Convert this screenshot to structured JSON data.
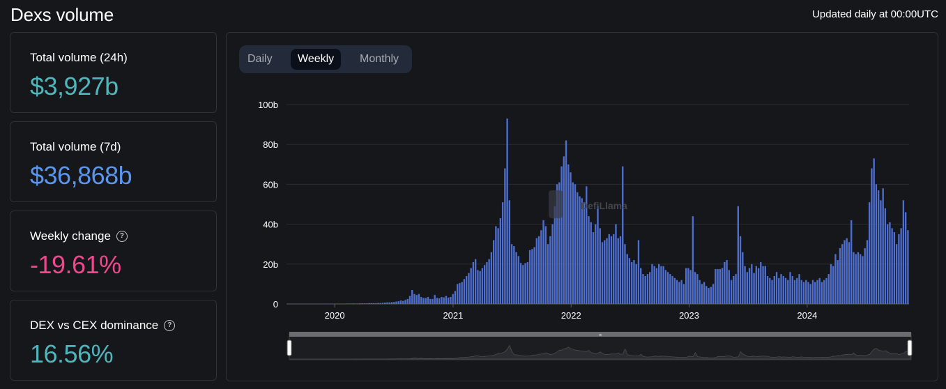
{
  "header": {
    "title": "Dexs volume",
    "updated": "Updated daily at 00:00UTC"
  },
  "cards": [
    {
      "label": "Total volume (24h)",
      "value": "$3,927b",
      "color": "#4fb6bd",
      "help": false
    },
    {
      "label": "Total volume (7d)",
      "value": "$36,868b",
      "color": "#5a95ee",
      "help": false
    },
    {
      "label": "Weekly change",
      "value": "-19.61%",
      "color": "#f0488e",
      "help": true
    },
    {
      "label": "DEX vs CEX dominance",
      "value": "16.56%",
      "color": "#4fb6bd",
      "help": true
    }
  ],
  "tabs": [
    {
      "label": "Daily",
      "active": false
    },
    {
      "label": "Weekly",
      "active": true
    },
    {
      "label": "Monthly",
      "active": false
    }
  ],
  "watermark": "DefiLlama",
  "colors": {
    "bar": "#4f6fd0",
    "grid": "#2a2c31",
    "axis_text": "#ffffff"
  },
  "chart_data": {
    "type": "bar",
    "xlabel": "",
    "ylabel": "",
    "x_start": "2019-08-05",
    "x_interval": "weekly",
    "xticks": [
      "2020",
      "2021",
      "2022",
      "2023",
      "2024"
    ],
    "yticks": [
      "0",
      "20b",
      "40b",
      "60b",
      "80b",
      "100b"
    ],
    "ylim": [
      0,
      100
    ],
    "grid": true,
    "values": [
      0.05,
      0.05,
      0.05,
      0.05,
      0.05,
      0.05,
      0.05,
      0.05,
      0.05,
      0.05,
      0.05,
      0.05,
      0.1,
      0.1,
      0.1,
      0.1,
      0.1,
      0.1,
      0.1,
      0.1,
      0.1,
      0.1,
      0.1,
      0.15,
      0.15,
      0.15,
      0.2,
      0.2,
      0.2,
      0.25,
      0.2,
      0.2,
      0.3,
      0.3,
      0.3,
      0.3,
      0.4,
      0.4,
      0.4,
      0.4,
      0.5,
      0.5,
      0.6,
      0.7,
      0.8,
      0.8,
      0.9,
      1.0,
      1.2,
      1.4,
      1.8,
      1.5,
      2,
      2.5,
      4,
      7,
      5,
      4.5,
      5,
      3.5,
      3,
      3,
      3.5,
      2.5,
      2.5,
      4.5,
      3,
      2.8,
      3.5,
      3.3,
      4,
      3.2,
      3.5,
      5,
      6.5,
      10,
      10.5,
      11,
      12.5,
      14,
      15.5,
      18,
      21,
      22.5,
      17,
      16.5,
      18,
      19.5,
      21,
      22.5,
      26,
      32,
      39,
      38,
      43,
      51,
      68,
      93,
      52,
      30,
      29,
      26,
      24,
      20.5,
      19.5,
      20.5,
      21,
      27,
      27.5,
      28.5,
      33,
      34,
      37,
      42,
      39,
      30,
      34,
      40,
      49,
      60,
      61,
      69,
      74,
      82,
      70,
      66,
      61,
      60,
      56,
      54,
      53,
      51,
      59,
      44,
      41,
      36,
      40,
      49,
      38,
      31,
      32,
      33,
      35,
      34,
      35,
      40,
      33,
      34,
      69,
      30,
      25,
      23,
      21,
      22,
      20,
      32,
      18,
      15,
      14,
      15,
      16,
      20,
      19,
      18,
      20,
      19,
      19,
      17,
      16,
      15,
      14,
      13,
      12,
      11,
      12,
      10,
      18,
      18,
      17,
      44,
      16,
      15,
      12,
      10,
      11,
      9,
      8,
      8.5,
      10,
      17.5,
      17.5,
      17.5,
      18,
      21,
      22,
      17,
      12,
      14,
      15,
      49,
      34,
      26,
      19,
      16,
      18,
      20,
      15.5,
      19,
      18,
      21,
      19,
      19,
      14,
      13,
      12,
      14,
      16,
      13,
      15,
      14,
      13,
      12,
      16,
      14,
      12,
      13,
      15,
      12,
      11,
      12,
      11,
      10,
      12,
      11,
      12,
      13,
      11,
      12,
      13,
      15,
      20,
      19,
      25,
      22,
      28,
      30,
      32,
      33,
      31,
      42,
      26,
      25,
      26,
      25,
      24,
      28,
      32,
      51,
      68,
      73,
      60,
      57,
      52,
      58,
      48,
      40,
      41,
      38,
      36,
      30,
      35,
      38,
      52,
      46,
      37
    ]
  }
}
